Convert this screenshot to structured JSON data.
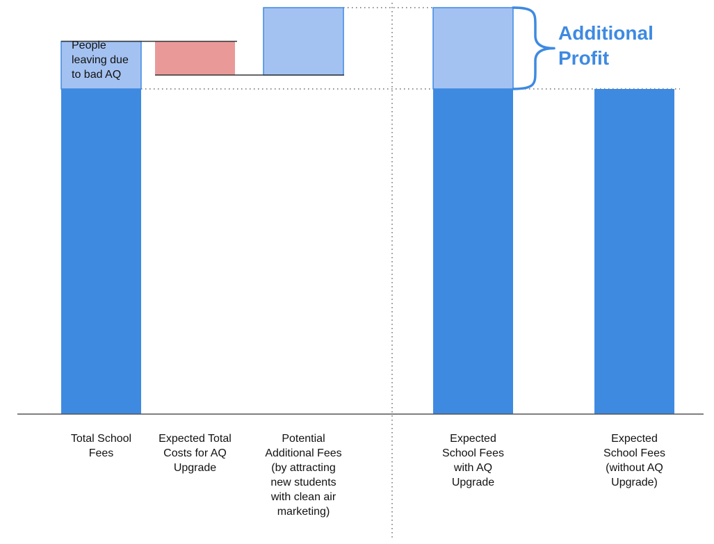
{
  "colors": {
    "solid_blue": "#3e8ae1",
    "light_blue": "#a4c2f1",
    "light_blue_border": "#3e8ae1",
    "red": "#ea9999",
    "axis": "#555555",
    "connector": "#333333",
    "dotted": "#666666",
    "brace": "#3e8ae1",
    "annotation_text": "#3e8ae1"
  },
  "chart_data": {
    "type": "bar",
    "subtype": "waterfall",
    "title": "",
    "xlabel": "",
    "ylabel": "",
    "y_axis_shown": false,
    "grid": false,
    "ylim": [
      0,
      100
    ],
    "bars": [
      {
        "category": "Total School Fees",
        "label_lines": [
          "Total School",
          "Fees"
        ],
        "segments": [
          {
            "role": "base",
            "from": 0,
            "to": 82,
            "style": "solid"
          },
          {
            "role": "loss",
            "from": 82,
            "to": 94,
            "style": "light",
            "label_lines": [
              "People",
              "leaving due",
              "to bad AQ"
            ]
          }
        ]
      },
      {
        "category": "Expected Total Costs for AQ Upgrade",
        "label_lines": [
          "Expected Total",
          "Costs for AQ",
          "Upgrade"
        ],
        "segments": [
          {
            "role": "cost",
            "from": 94,
            "to": 85.5,
            "style": "red"
          }
        ]
      },
      {
        "category": "Potential Additional Fees (by attracting new students with clean air marketing)",
        "label_lines": [
          "Potential",
          "Additional Fees",
          "(by attracting",
          "new students",
          "with clean air",
          "marketing)"
        ],
        "segments": [
          {
            "role": "gain",
            "from": 85.5,
            "to": 102.5,
            "style": "light"
          }
        ]
      },
      {
        "category": "Expected School Fees with AQ Upgrade",
        "label_lines": [
          "Expected",
          "School Fees",
          "with AQ",
          "Upgrade"
        ],
        "segments": [
          {
            "role": "base",
            "from": 0,
            "to": 82,
            "style": "solid"
          },
          {
            "role": "profit",
            "from": 82,
            "to": 102.5,
            "style": "light"
          }
        ]
      },
      {
        "category": "Expected School Fees (without AQ Upgrade)",
        "label_lines": [
          "Expected",
          "School Fees",
          "(without AQ",
          "Upgrade)"
        ],
        "segments": [
          {
            "role": "base",
            "from": 0,
            "to": 82,
            "style": "solid"
          }
        ]
      }
    ],
    "annotations": [
      {
        "type": "brace",
        "text_lines": [
          "Additional",
          "Profit"
        ],
        "from": 82,
        "to": 102.5,
        "bar_index": 3
      }
    ],
    "reference_lines": [
      {
        "type": "dotted-horizontal",
        "value": 102.5
      },
      {
        "type": "dotted-horizontal",
        "value": 82
      },
      {
        "type": "dotted-vertical-separator",
        "between_bars": [
          2,
          3
        ]
      }
    ]
  }
}
